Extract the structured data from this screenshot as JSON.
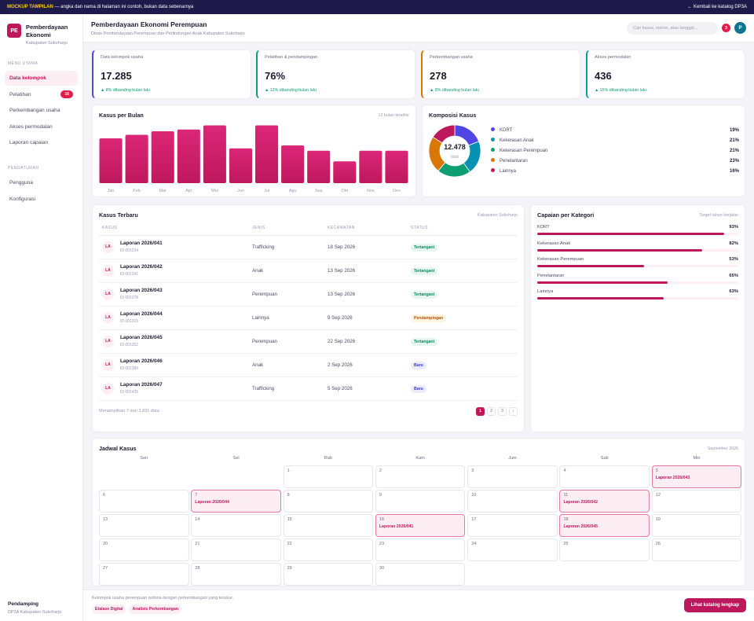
{
  "topbar": {
    "tag": "MOCKUP TAMPILAN",
    "note": "— angka dan nama di halaman ini contoh, bukan data sebenarnya",
    "back": "← Kembali ke katalog DP3A"
  },
  "brand": {
    "logo": "PE",
    "name_line1": "Pemberdayaan",
    "name_line2": "Ekonomi",
    "sub": "Kabupaten Sukoharjo"
  },
  "sidebar": {
    "section1": "MENU UTAMA",
    "items": [
      {
        "label": "Data kelompok",
        "active": true
      },
      {
        "label": "Pelatihan",
        "badge": "16"
      },
      {
        "label": "Perkembangan usaha"
      },
      {
        "label": "Akses permodalan"
      },
      {
        "label": "Laporan capaian"
      }
    ],
    "section2": "PENGATURAN",
    "settings": [
      {
        "label": "Pengguna"
      },
      {
        "label": "Konfigurasi"
      }
    ],
    "user_name": "Pendamping",
    "user_org": "DP3A Kabupaten Sukoharjo"
  },
  "header": {
    "title": "Pemberdayaan Ekonomi Perempuan",
    "subtitle": "Dinas Pemberdayaan Perempuan dan Perlindungan Anak Kabupaten Sukoharjo",
    "search_placeholder": "Cari kasus, nomor, atau tanggal...",
    "notif_count": "3",
    "avatar": "P"
  },
  "stats": [
    {
      "label": "Data kelompok usaha",
      "value": "17.285",
      "change": "▲ 8% dibanding bulan lalu",
      "accent": "#4f46e5"
    },
    {
      "label": "Pelatihan & pendampingan",
      "value": "76%",
      "change": "▲ 12% dibanding bulan lalu",
      "accent": "#0f9d72"
    },
    {
      "label": "Perkembangan usaha",
      "value": "278",
      "change": "▲ 8% dibanding bulan lalu",
      "accent": "#d97706"
    },
    {
      "label": "Akses permodalan",
      "value": "436",
      "change": "▲ 15% dibanding bulan lalu",
      "accent": "#0e9f8f"
    }
  ],
  "monthly": {
    "title": "Kasus per Bulan",
    "note": "12 bulan terakhir"
  },
  "chart_data": {
    "type": "bar",
    "categories": [
      "Jan",
      "Feb",
      "Mar",
      "Apr",
      "Mei",
      "Jun",
      "Jul",
      "Agu",
      "Sep",
      "Okt",
      "Nov",
      "Des"
    ],
    "values": [
      76,
      82,
      88,
      91,
      98,
      59,
      98,
      64,
      55,
      37,
      55,
      55
    ],
    "ylim": [
      0,
      100
    ]
  },
  "composition": {
    "title": "Komposisi Kasus",
    "total": "12.478",
    "total_label": "total",
    "segments": [
      {
        "name": "KDRT",
        "pct": "19%",
        "value": 19,
        "color": "#4f46e5"
      },
      {
        "name": "Kekerasan Anak",
        "pct": "21%",
        "value": 21,
        "color": "#0891b2"
      },
      {
        "name": "Kekerasan Perempuan",
        "pct": "21%",
        "value": 21,
        "color": "#0f9d72"
      },
      {
        "name": "Penelantaran",
        "pct": "23%",
        "value": 23,
        "color": "#d97706"
      },
      {
        "name": "Lainnya",
        "pct": "16%",
        "value": 16,
        "color": "#be185d"
      }
    ]
  },
  "cases": {
    "title": "Kasus Terbaru",
    "note": "Kabupaten Sukoharjo",
    "headers": [
      "KASUS",
      "JENIS",
      "KECAMATAN",
      "STATUS"
    ],
    "rows": [
      {
        "icon": "LA",
        "title": "Laporan 2026/041",
        "id": "ID 001234",
        "jenis": "Trafficking",
        "tanggal": "18 Sep 2026",
        "status": "Tertangani",
        "kind": "t"
      },
      {
        "icon": "LA",
        "title": "Laporan 2026/042",
        "id": "ID 001241",
        "jenis": "Anak",
        "tanggal": "13 Sep 2026",
        "status": "Tertangani",
        "kind": "t"
      },
      {
        "icon": "LA",
        "title": "Laporan 2026/043",
        "id": "ID 001278",
        "jenis": "Perempuan",
        "tanggal": "13 Sep 2026",
        "status": "Tertangani",
        "kind": "t"
      },
      {
        "icon": "LA",
        "title": "Laporan 2026/044",
        "id": "ID 001315",
        "jenis": "Lainnya",
        "tanggal": "9 Sep 2026",
        "status": "Pendampingan",
        "kind": "p"
      },
      {
        "icon": "LA",
        "title": "Laporan 2026/045",
        "id": "ID 001352",
        "jenis": "Perempuan",
        "tanggal": "22 Sep 2026",
        "status": "Tertangani",
        "kind": "t"
      },
      {
        "icon": "LA",
        "title": "Laporan 2026/046",
        "id": "ID 001389",
        "jenis": "Anak",
        "tanggal": "2 Sep 2026",
        "status": "Baru",
        "kind": "b"
      },
      {
        "icon": "LA",
        "title": "Laporan 2026/047",
        "id": "ID 001426",
        "jenis": "Trafficking",
        "tanggal": "5 Sep 2026",
        "status": "Baru",
        "kind": "b"
      }
    ],
    "summary": "Menampilkan 7 dari 3.831 data",
    "pages": [
      "1",
      "2",
      "3",
      "›"
    ]
  },
  "achievement": {
    "title": "Capaian per Kategori",
    "note": "Target tahun berjalan",
    "items": [
      {
        "label": "KDRT",
        "pct": "93%",
        "value": 93
      },
      {
        "label": "Kekerasan Anak",
        "pct": "82%",
        "value": 82
      },
      {
        "label": "Kekerasan Perempuan",
        "pct": "53%",
        "value": 53
      },
      {
        "label": "Penelantaran",
        "pct": "65%",
        "value": 65
      },
      {
        "label": "Lainnya",
        "pct": "63%",
        "value": 63
      }
    ]
  },
  "calendar": {
    "title": "Jadwal Kasus",
    "month": "September 2026",
    "weekdays": [
      "Sen",
      "Sel",
      "Rab",
      "Kam",
      "Jum",
      "Sab",
      "Min"
    ],
    "lead_blank": 2,
    "days": 30,
    "events": {
      "5": "Laporan 2026/043",
      "7": "Laporan 2026/044",
      "11": "Laporan 2026/042",
      "16": "Laporan 2026/041",
      "18": "Laporan 2026/045"
    }
  },
  "footer": {
    "text": "Kelompok usaha perempuan terbina dengan perkembangan yang terukur.",
    "chips": [
      "Etalase Digital",
      "Analisis Perkembangan"
    ],
    "cta": "Lihat katalog lengkap"
  }
}
